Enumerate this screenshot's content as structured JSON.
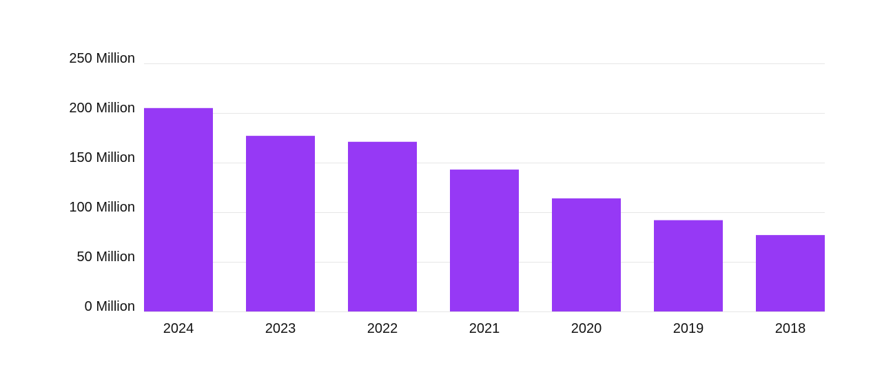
{
  "chart_data": {
    "type": "bar",
    "title": "",
    "xlabel": "",
    "ylabel": "",
    "categories": [
      "2024",
      "2023",
      "2022",
      "2021",
      "2020",
      "2019",
      "2018"
    ],
    "values": [
      205,
      177,
      171,
      143,
      114,
      92,
      77
    ],
    "ylim": [
      0,
      250
    ],
    "y_ticks": [
      0,
      50,
      100,
      150,
      200,
      250
    ],
    "y_tick_labels": [
      "0 Million",
      "50 Million",
      "100 Million",
      "150 Million",
      "200 Million",
      "250 Million"
    ],
    "unit": "Million",
    "bar_color": "#9639f5",
    "grid": true,
    "legend": "none"
  }
}
